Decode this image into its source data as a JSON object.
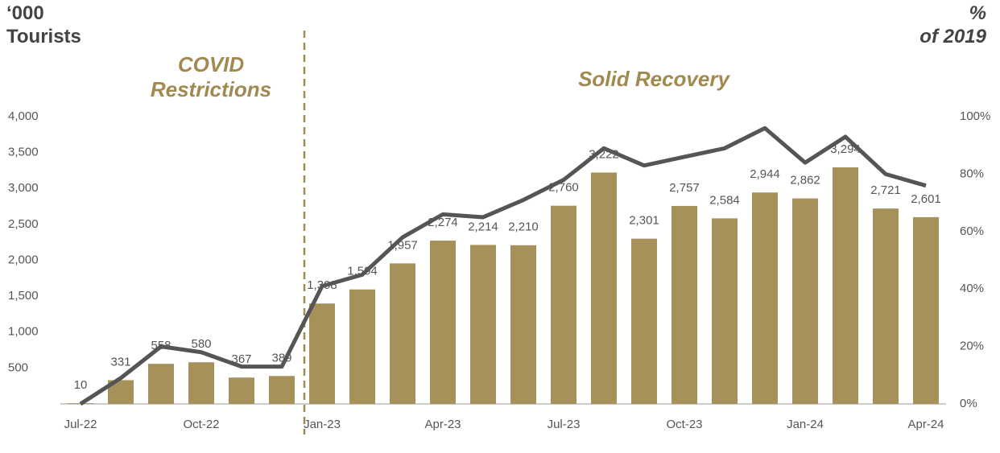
{
  "chart_data": {
    "type": "bar-line",
    "y_label": "‘000 Tourists",
    "y2_label": "% of 2019",
    "annotations": [
      "COVID Restrictions",
      "Solid Recovery"
    ],
    "categories": [
      "Jul-22",
      null,
      null,
      "Oct-22",
      null,
      null,
      "Jan-23",
      null,
      null,
      "Apr-23",
      null,
      null,
      "Jul-23",
      null,
      null,
      "Oct-23",
      null,
      null,
      "Jan-24",
      null,
      null,
      "Apr-24"
    ],
    "series": [
      {
        "type": "bar",
        "color": "#a6915b",
        "values": [
          10,
          331,
          558,
          580,
          367,
          389,
          1398,
          1594,
          1957,
          2274,
          2214,
          2210,
          2760,
          3222,
          2301,
          2757,
          2584,
          2944,
          2862,
          3294,
          2721,
          2601
        ],
        "value_labels": [
          "10",
          "331",
          "558",
          "580",
          "367",
          "389",
          "1,398",
          "1,594",
          "1,957",
          "2,274",
          "2,214",
          "2,210",
          "2,760",
          "3,222",
          "2,301",
          "2,757",
          "2,584",
          "2,944",
          "2,862",
          "3,294",
          "2,721",
          "2,601"
        ]
      },
      {
        "type": "line",
        "color": "#555555",
        "axis": "y2",
        "values": [
          0,
          9,
          20,
          18,
          13,
          13,
          41,
          45,
          58,
          66,
          65,
          71,
          78,
          89,
          83,
          86,
          89,
          96,
          84,
          93,
          80,
          76
        ]
      }
    ],
    "ylim": [
      0,
      4000
    ],
    "yticks": [
      {
        "value": 500,
        "label": "500"
      },
      {
        "value": 1000,
        "label": "1,000"
      },
      {
        "value": 1500,
        "label": "1,500"
      },
      {
        "value": 2000,
        "label": "2,000"
      },
      {
        "value": 2500,
        "label": "2,500"
      },
      {
        "value": 3000,
        "label": "3,000"
      },
      {
        "value": 3500,
        "label": "3,500"
      },
      {
        "value": 4000,
        "label": "4,000"
      }
    ],
    "y2lim": [
      0,
      100
    ],
    "y2ticks": [
      {
        "value": 0,
        "label": "0%"
      },
      {
        "value": 20,
        "label": "20%"
      },
      {
        "value": 40,
        "label": "40%"
      },
      {
        "value": 60,
        "label": "60%"
      },
      {
        "value": 80,
        "label": "80%"
      },
      {
        "value": 100,
        "label": "100%"
      }
    ]
  }
}
